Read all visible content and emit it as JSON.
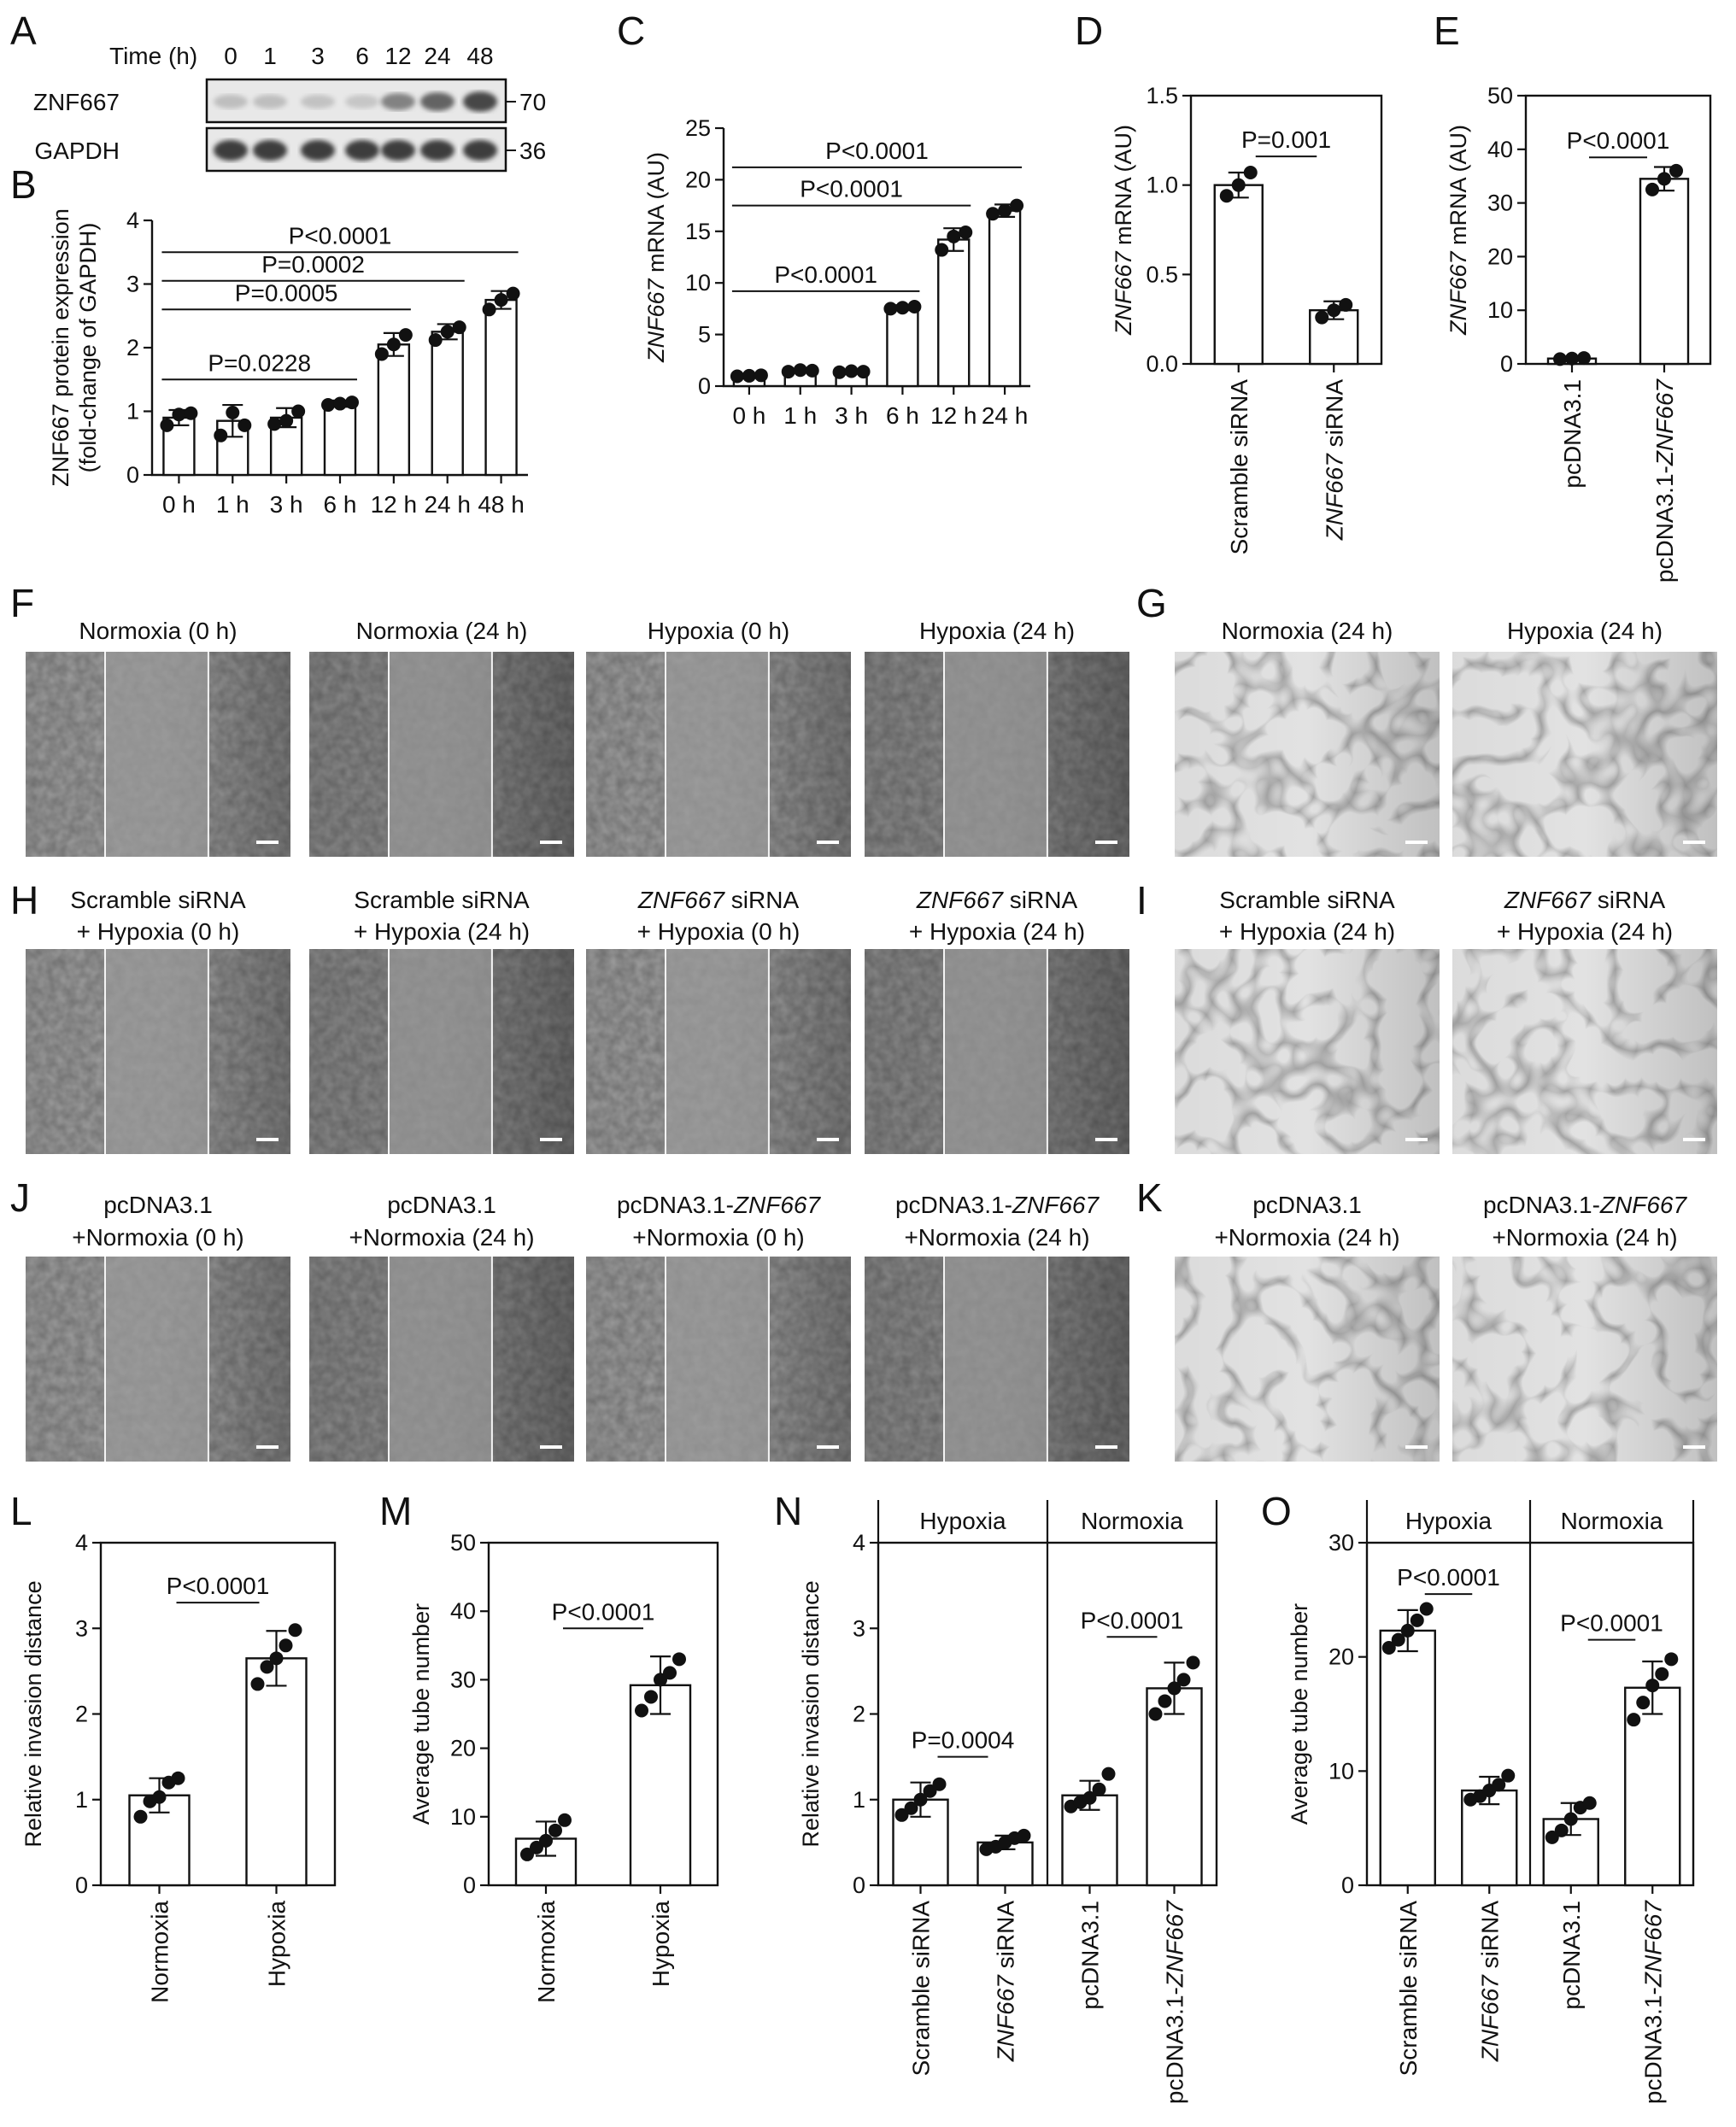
{
  "figure": {
    "panel_letters": [
      "A",
      "B",
      "C",
      "D",
      "E",
      "F",
      "G",
      "H",
      "I",
      "J",
      "K",
      "L",
      "M",
      "N",
      "O"
    ]
  },
  "blot": {
    "time_label": "Time (h)",
    "timepoints": [
      "0",
      "1",
      "3",
      "6",
      "12",
      "24",
      "48"
    ],
    "rows": [
      {
        "name": "ZNF667",
        "marker": "70",
        "intensity": [
          0.2,
          0.2,
          0.18,
          0.16,
          0.5,
          0.65,
          0.8
        ]
      },
      {
        "name": "GAPDH",
        "marker": "36",
        "intensity": [
          0.85,
          0.85,
          0.85,
          0.85,
          0.85,
          0.85,
          0.85
        ]
      }
    ]
  },
  "chart_data": [
    {
      "panel": "B",
      "type": "bar",
      "ylabel": "ZNF667 protein expression",
      "ylabel2": "(fold-change of GAPDH)",
      "categories": [
        "0 h",
        "1 h",
        "3 h",
        "6 h",
        "12 h",
        "24 h",
        "48 h"
      ],
      "values": [
        0.9,
        0.85,
        0.9,
        1.12,
        2.05,
        2.25,
        2.75
      ],
      "errors": [
        0.12,
        0.25,
        0.15,
        0.05,
        0.18,
        0.12,
        0.14
      ],
      "points": [
        [
          0.78,
          0.95,
          0.97
        ],
        [
          0.62,
          0.98,
          0.78
        ],
        [
          0.8,
          0.85,
          1.0
        ],
        [
          1.1,
          1.12,
          1.14
        ],
        [
          1.9,
          2.05,
          2.2
        ],
        [
          2.12,
          2.25,
          2.32
        ],
        [
          2.6,
          2.75,
          2.85
        ]
      ],
      "ylim": [
        0,
        4
      ],
      "yticks": [
        0,
        1,
        2,
        3,
        4
      ],
      "comparisons": [
        {
          "from": 0,
          "to": 3,
          "label": "P=0.0228",
          "y": 1.5
        },
        {
          "from": 0,
          "to": 4,
          "label": "P=0.0005",
          "y": 2.6
        },
        {
          "from": 0,
          "to": 5,
          "label": "P=0.0002",
          "y": 3.05
        },
        {
          "from": 0,
          "to": 6,
          "label": "P<0.0001",
          "y": 3.5
        }
      ]
    },
    {
      "panel": "C",
      "type": "bar",
      "ylabel": "mRNA (AU)",
      "ylabel_italic": "ZNF667",
      "categories": [
        "0 h",
        "1 h",
        "3 h",
        "6 h",
        "12 h",
        "24 h"
      ],
      "values": [
        1.0,
        1.5,
        1.4,
        7.6,
        14.2,
        17.0
      ],
      "errors": [
        0.1,
        0.15,
        0.1,
        0.25,
        1.1,
        0.6
      ],
      "points": [
        [
          0.95,
          1.0,
          1.05
        ],
        [
          1.4,
          1.55,
          1.5
        ],
        [
          1.35,
          1.45,
          1.4
        ],
        [
          7.5,
          7.6,
          7.7
        ],
        [
          13.2,
          14.5,
          14.9
        ],
        [
          16.7,
          17.0,
          17.5
        ]
      ],
      "ylim": [
        0,
        25
      ],
      "yticks": [
        0,
        5,
        10,
        15,
        20,
        25
      ],
      "comparisons": [
        {
          "from": 0,
          "to": 3,
          "label": "P<0.0001",
          "y": 9.2
        },
        {
          "from": 0,
          "to": 4,
          "label": "P<0.0001",
          "y": 17.5
        },
        {
          "from": 0,
          "to": 5,
          "label": "P<0.0001",
          "y": 21.2
        }
      ]
    },
    {
      "panel": "D",
      "type": "bar",
      "ylabel": "mRNA (AU)",
      "ylabel_italic": "ZNF667",
      "categories": [
        {
          "t": "Scramble siRNA"
        },
        {
          "i": "ZNF667",
          "t": " siRNA"
        }
      ],
      "values": [
        1.0,
        0.3
      ],
      "errors": [
        0.07,
        0.05
      ],
      "points": [
        [
          0.94,
          1.0,
          1.07
        ],
        [
          0.26,
          0.3,
          0.33
        ]
      ],
      "ylim": [
        0,
        1.5
      ],
      "yticks": [
        "0.0",
        "0.5",
        "1.0",
        "1.5"
      ],
      "ytick_values": [
        0,
        0.5,
        1.0,
        1.5
      ],
      "comparisons": [
        {
          "from": 0,
          "to": 1,
          "label": "P=0.001",
          "y": 1.16
        }
      ]
    },
    {
      "panel": "E",
      "type": "bar",
      "ylabel": "mRNA (AU)",
      "ylabel_italic": "ZNF667",
      "categories": [
        {
          "t": "pcDNA3.1"
        },
        {
          "t": "pcDNA3.1-",
          "i": "ZNF667"
        }
      ],
      "values": [
        1.0,
        34.5
      ],
      "errors": [
        0.1,
        2.2
      ],
      "points": [
        [
          0.9,
          1.0,
          1.1
        ],
        [
          32.5,
          34.5,
          36.0
        ]
      ],
      "ylim": [
        0,
        50
      ],
      "yticks": [
        0,
        10,
        20,
        30,
        40,
        50
      ],
      "comparisons": [
        {
          "from": 0,
          "to": 1,
          "label": "P<0.0001",
          "y": 38.5
        }
      ]
    },
    {
      "panel": "L",
      "type": "bar",
      "ylabel": "Relative invasion distance",
      "categories": [
        {
          "t": "Normoxia"
        },
        {
          "t": "Hypoxia"
        }
      ],
      "values": [
        1.05,
        2.65
      ],
      "errors": [
        0.2,
        0.32
      ],
      "points": [
        [
          0.8,
          0.98,
          1.03,
          1.2,
          1.25
        ],
        [
          2.35,
          2.55,
          2.65,
          2.8,
          2.98
        ]
      ],
      "ylim": [
        0,
        4
      ],
      "yticks": [
        0,
        1,
        2,
        3,
        4
      ],
      "comparisons": [
        {
          "from": 0,
          "to": 1,
          "label": "P<0.0001",
          "y": 3.3
        }
      ]
    },
    {
      "panel": "M",
      "type": "bar",
      "ylabel": "Average tube number",
      "categories": [
        {
          "t": "Normoxia"
        },
        {
          "t": "Hypoxia"
        }
      ],
      "values": [
        6.8,
        29.2
      ],
      "errors": [
        2.5,
        4.2
      ],
      "points": [
        [
          4.5,
          5.5,
          6.5,
          8.0,
          9.5
        ],
        [
          25.5,
          27.5,
          30.0,
          31.0,
          33.0
        ]
      ],
      "ylim": [
        0,
        50
      ],
      "yticks": [
        0,
        10,
        20,
        30,
        40,
        50
      ],
      "comparisons": [
        {
          "from": 0,
          "to": 1,
          "label": "P<0.0001",
          "y": 37.5
        }
      ]
    },
    {
      "panel": "N",
      "type": "bar",
      "ylabel": "Relative invasion distance",
      "groups": [
        "Hypoxia",
        "Normoxia"
      ],
      "categories": [
        {
          "t": "Scramble siRNA"
        },
        {
          "i": "ZNF667",
          "t": " siRNA"
        },
        {
          "t": "pcDNA3.1"
        },
        {
          "t": "pcDNA3.1-",
          "i": "ZNF667"
        }
      ],
      "values": [
        1.0,
        0.5,
        1.05,
        2.3
      ],
      "errors": [
        0.2,
        0.08,
        0.17,
        0.3
      ],
      "points": [
        [
          0.82,
          0.9,
          1.0,
          1.1,
          1.18
        ],
        [
          0.42,
          0.45,
          0.5,
          0.55,
          0.58
        ],
        [
          0.92,
          0.97,
          1.02,
          1.12,
          1.3
        ],
        [
          2.0,
          2.15,
          2.3,
          2.4,
          2.6
        ]
      ],
      "ylim": [
        0,
        4
      ],
      "yticks": [
        0,
        1,
        2,
        3,
        4
      ],
      "comparisons": [
        {
          "from": 0,
          "to": 1,
          "label": "P=0.0004",
          "y": 1.5
        },
        {
          "from": 2,
          "to": 3,
          "label": "P<0.0001",
          "y": 2.9
        }
      ]
    },
    {
      "panel": "O",
      "type": "bar",
      "ylabel": "Average tube number",
      "groups": [
        "Hypoxia",
        "Normoxia"
      ],
      "categories": [
        {
          "t": "Scramble siRNA"
        },
        {
          "i": "ZNF667",
          "t": " siRNA"
        },
        {
          "t": "pcDNA3.1"
        },
        {
          "t": "pcDNA3.1-",
          "i": "ZNF667"
        }
      ],
      "values": [
        22.3,
        8.3,
        5.8,
        17.3
      ],
      "errors": [
        1.8,
        1.2,
        1.4,
        2.3
      ],
      "points": [
        [
          20.8,
          21.5,
          22.3,
          23.2,
          24.2
        ],
        [
          7.5,
          7.8,
          8.3,
          8.8,
          9.6
        ],
        [
          4.2,
          4.8,
          5.8,
          6.8,
          7.2
        ],
        [
          14.5,
          16.0,
          17.5,
          18.5,
          19.8
        ]
      ],
      "ylim": [
        0,
        30
      ],
      "yticks": [
        0,
        10,
        20,
        30
      ],
      "comparisons": [
        {
          "from": 0,
          "to": 1,
          "label": "P<0.0001",
          "y": 25.5
        },
        {
          "from": 2,
          "to": 3,
          "label": "P<0.0001",
          "y": 21.5
        }
      ]
    }
  ],
  "micrographs": {
    "F": [
      {
        "caption": [
          "Normoxia (0 h)"
        ],
        "style": "wound"
      },
      {
        "caption": [
          "Normoxia (24 h)"
        ],
        "style": "wound"
      },
      {
        "caption": [
          "Hypoxia (0 h)"
        ],
        "style": "wound"
      },
      {
        "caption": [
          "Hypoxia (24 h)"
        ],
        "style": "wound"
      }
    ],
    "G": [
      {
        "caption": [
          "Normoxia (24 h)"
        ],
        "style": "tube"
      },
      {
        "caption": [
          "Hypoxia (24 h)"
        ],
        "style": "tube"
      }
    ],
    "H": [
      {
        "caption": [
          {
            "t": "Scramble siRNA"
          },
          {
            "t": "+ Hypoxia (0 h)"
          }
        ],
        "style": "wound"
      },
      {
        "caption": [
          {
            "t": "Scramble siRNA"
          },
          {
            "t": "+ Hypoxia (24 h)"
          }
        ],
        "style": "wound"
      },
      {
        "caption": [
          {
            "i": "ZNF667",
            "t": " siRNA"
          },
          {
            "t": "+ Hypoxia (0 h)"
          }
        ],
        "style": "wound"
      },
      {
        "caption": [
          {
            "i": "ZNF667",
            "t": " siRNA"
          },
          {
            "t": "+ Hypoxia (24 h)"
          }
        ],
        "style": "wound"
      }
    ],
    "I": [
      {
        "caption": [
          {
            "t": "Scramble siRNA"
          },
          {
            "t": "+ Hypoxia (24 h)"
          }
        ],
        "style": "tube"
      },
      {
        "caption": [
          {
            "i": "ZNF667",
            "t": " siRNA"
          },
          {
            "t": "+ Hypoxia (24 h)"
          }
        ],
        "style": "tube"
      }
    ],
    "J": [
      {
        "caption": [
          {
            "t": "pcDNA3.1"
          },
          {
            "t": "+Normoxia (0 h)"
          }
        ],
        "style": "wound"
      },
      {
        "caption": [
          {
            "t": "pcDNA3.1"
          },
          {
            "t": "+Normoxia (24 h)"
          }
        ],
        "style": "wound"
      },
      {
        "caption": [
          {
            "t": "pcDNA3.1-",
            "i": "ZNF667"
          },
          {
            "t": "+Normoxia (0 h)"
          }
        ],
        "style": "wound"
      },
      {
        "caption": [
          {
            "t": "pcDNA3.1-",
            "i": "ZNF667"
          },
          {
            "t": "+Normoxia (24 h)"
          }
        ],
        "style": "wound"
      }
    ],
    "K": [
      {
        "caption": [
          {
            "t": "pcDNA3.1"
          },
          {
            "t": "+Normoxia (24 h)"
          }
        ],
        "style": "tube"
      },
      {
        "caption": [
          {
            "t": "pcDNA3.1-",
            "i": "ZNF667"
          },
          {
            "t": "+Normoxia (24 h)"
          }
        ],
        "style": "tube"
      }
    ]
  },
  "colors": {
    "ink": "#111111",
    "bar_fill": "#ffffff",
    "micrograph_base": "#9a9a9a",
    "tube_base": "#e4e4e4"
  }
}
